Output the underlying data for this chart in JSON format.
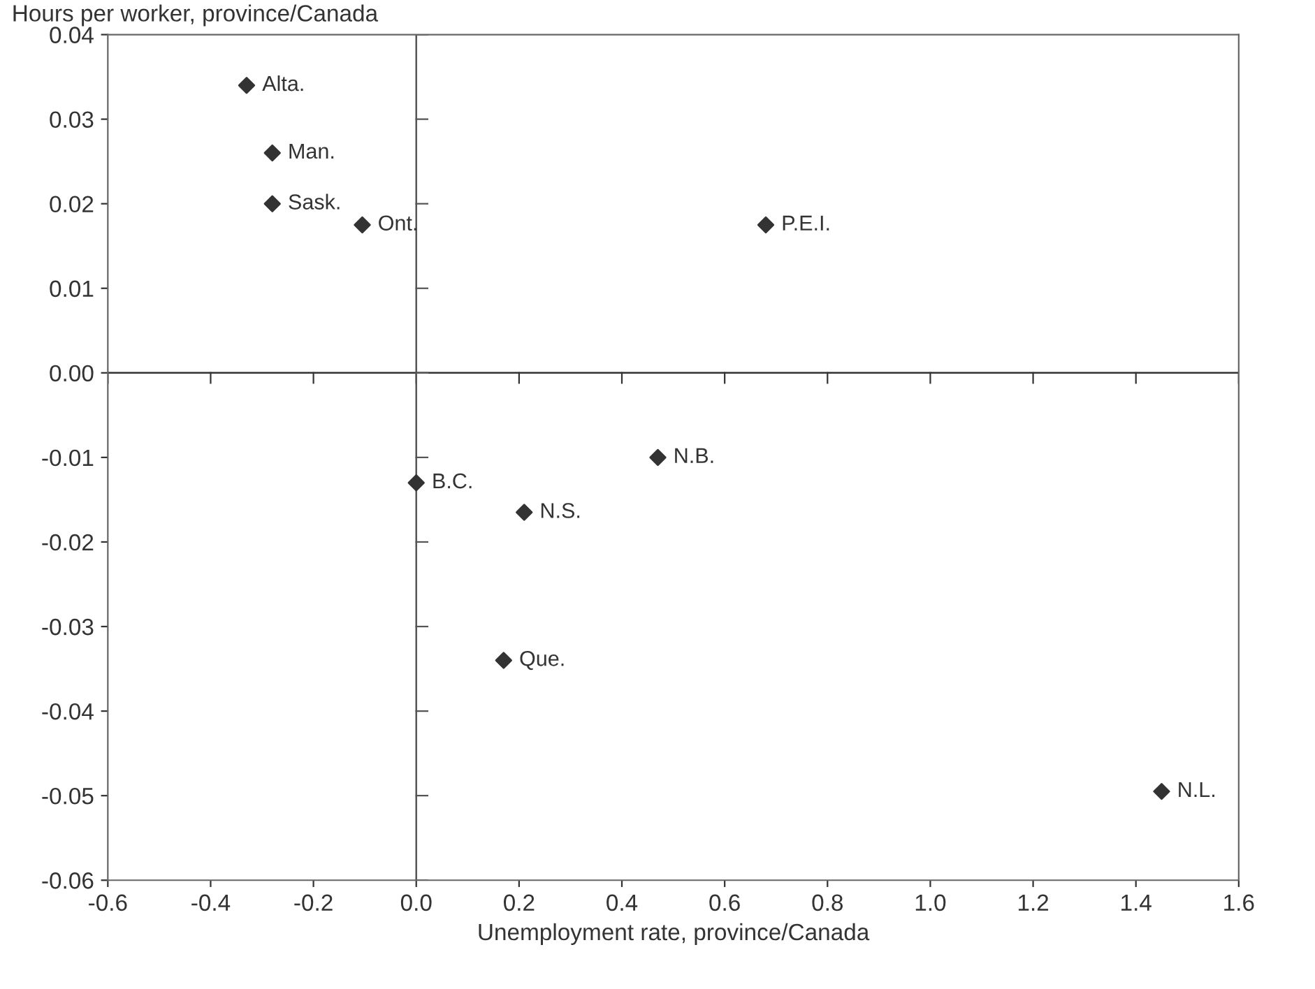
{
  "chart_data": {
    "type": "scatter",
    "ylabel": "Hours per worker, province/Canada",
    "xlabel": "Unemployment rate, province/Canada",
    "x": [
      -0.33,
      -0.28,
      -0.28,
      -0.105,
      0.68,
      0.0,
      0.47,
      0.21,
      0.17,
      1.45
    ],
    "series": [
      {
        "color": "#333333",
        "values": [
          0.034,
          0.026,
          0.02,
          0.0175,
          0.0175,
          -0.013,
          -0.01,
          -0.0165,
          -0.034,
          -0.0495
        ]
      }
    ],
    "annotations": [
      {
        "text": "Alta.",
        "x": -0.33,
        "y": 0.034
      },
      {
        "text": "Man.",
        "x": -0.28,
        "y": 0.026
      },
      {
        "text": "Sask.",
        "x": -0.28,
        "y": 0.02
      },
      {
        "text": "Ont.",
        "x": -0.105,
        "y": 0.0175
      },
      {
        "text": "P.E.I.",
        "x": 0.68,
        "y": 0.0175
      },
      {
        "text": "B.C.",
        "x": 0.0,
        "y": -0.013
      },
      {
        "text": "N.B.",
        "x": 0.47,
        "y": -0.01
      },
      {
        "text": "N.S.",
        "x": 0.21,
        "y": -0.0165
      },
      {
        "text": "Que.",
        "x": 0.17,
        "y": -0.034
      },
      {
        "text": "N.L.",
        "x": 1.45,
        "y": -0.0495
      }
    ],
    "xlim": [
      -0.6,
      1.6
    ],
    "xticks": [
      {
        "value": -0.6,
        "label": "-0.6"
      },
      {
        "value": -0.4,
        "label": "-0.4"
      },
      {
        "value": -0.2,
        "label": "-0.2"
      },
      {
        "value": 0,
        "label": "0.0"
      },
      {
        "value": 0.2,
        "label": "0.2"
      },
      {
        "value": 0.4,
        "label": "0.4"
      },
      {
        "value": 0.6,
        "label": "0.6"
      },
      {
        "value": 0.8,
        "label": "0.8"
      },
      {
        "value": 1.0,
        "label": "1.0"
      },
      {
        "value": 1.2,
        "label": "1.2"
      },
      {
        "value": 1.4,
        "label": "1.4"
      },
      {
        "value": 1.6,
        "label": "1.6"
      }
    ],
    "ylim": [
      -0.06,
      0.04
    ],
    "yticks": [
      {
        "value": -0.06,
        "label": "-0.06"
      },
      {
        "value": -0.05,
        "label": "-0.05"
      },
      {
        "value": -0.04,
        "label": "-0.04"
      },
      {
        "value": -0.03,
        "label": "-0.03"
      },
      {
        "value": -0.02,
        "label": "-0.02"
      },
      {
        "value": -0.01,
        "label": "-0.01"
      },
      {
        "value": 0,
        "label": "0.00"
      },
      {
        "value": 0.01,
        "label": "0.01"
      },
      {
        "value": 0.02,
        "label": "0.02"
      },
      {
        "value": 0.03,
        "label": "0.03"
      },
      {
        "value": 0.04,
        "label": "0.04"
      }
    ],
    "ref_lines": [
      {
        "axis": "y",
        "value": 0,
        "color": "#333333"
      },
      {
        "axis": "x",
        "value": 0,
        "color": "#555555"
      }
    ],
    "marker": "diamond",
    "grid": false,
    "legend": false
  }
}
